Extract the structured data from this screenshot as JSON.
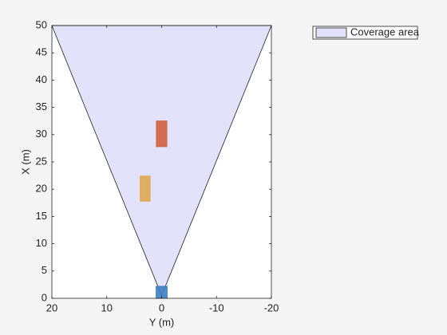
{
  "chart_data": {
    "type": "birdseye",
    "xlabel": "Y (m)",
    "ylabel": "X (m)",
    "xlim": [
      20,
      -20
    ],
    "xticks": [
      20,
      10,
      0,
      -10,
      -20
    ],
    "ylim": [
      0,
      50
    ],
    "yticks": [
      0,
      5,
      10,
      15,
      20,
      25,
      30,
      35,
      40,
      45,
      50
    ],
    "series": [
      {
        "name": "Coverage area",
        "color": "#e2e2fb",
        "x": [
          0,
          20,
          -20
        ],
        "y": [
          0.5,
          50,
          50
        ]
      }
    ],
    "objects": [
      {
        "color": "#3b7fc4",
        "x": [
          1,
          -1
        ],
        "y": [
          0,
          2.2
        ]
      },
      {
        "color": "#e0a84f",
        "x": [
          3.9,
          2.1
        ],
        "y": [
          17.8,
          22.4
        ]
      },
      {
        "color": "#d2603f",
        "x": [
          0.95,
          -0.95
        ],
        "y": [
          27.8,
          32.5
        ]
      }
    ],
    "legend": "northeast-outside"
  }
}
